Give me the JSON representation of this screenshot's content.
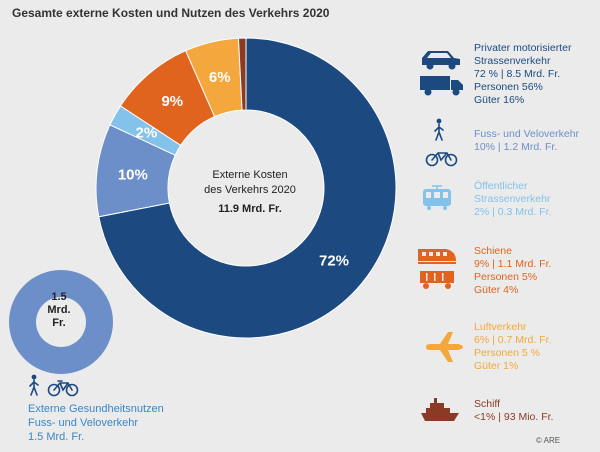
{
  "title": "Gesamte externe Kosten und Nutzen des Verkehrs 2020",
  "center": {
    "line1": "Externe Kosten",
    "line2": "des Verkehrs 2020",
    "total": "11.9 Mrd. Fr."
  },
  "benefit": {
    "circle_label_1": "1.5",
    "circle_label_2": "Mrd.",
    "circle_label_3": "Fr.",
    "lines": [
      "Externe Gesundheitsnutzen",
      "Fuss- und Veloverkehr",
      "1.5 Mrd. Fr."
    ]
  },
  "copyright": "© ARE",
  "colors": {
    "road": "#1c4a80",
    "foot": "#6d8fc9",
    "public": "#83c2ea",
    "rail": "#e0641e",
    "air": "#f4a73c",
    "ship": "#8b3a26",
    "benefit": "#6d8fc9"
  },
  "legend": [
    {
      "key": "road",
      "icon": "car-truck-icon",
      "lines": [
        "Privater motorisierter",
        "Strassenverkehr",
        "72 % | 8.5 Mrd. Fr.",
        "Personen 56%",
        "Güter 16%"
      ]
    },
    {
      "key": "foot",
      "icon": "pedestrian-bicycle-icon",
      "lines": [
        "Fuss- und Veloverkehr",
        "10% | 1.2 Mrd. Fr."
      ]
    },
    {
      "key": "public",
      "icon": "tram-icon",
      "lines": [
        "Öffentlicher",
        "Strassenverkehr",
        "2% | 0.3 Mrd. Fr."
      ]
    },
    {
      "key": "rail",
      "icon": "train-icon",
      "lines": [
        "Schiene",
        "9% | 1.1 Mrd. Fr.",
        "Personen 5%",
        "Güter 4%"
      ]
    },
    {
      "key": "air",
      "icon": "airplane-icon",
      "lines": [
        "Luftverkehr",
        "6% | 0.7 Mrd. Fr.",
        "Personen 5 %",
        "Güter 1%"
      ]
    },
    {
      "key": "ship",
      "icon": "ship-icon",
      "lines": [
        "Schiff",
        "<1% | 93 Mio. Fr."
      ]
    }
  ],
  "chart_data": {
    "type": "pie",
    "title": "Gesamte externe Kosten und Nutzen des Verkehrs 2020",
    "unit": "Mrd. Fr.",
    "total": 11.9,
    "slices": [
      {
        "name": "Privater motorisierter Strassenverkehr",
        "label": "72%",
        "value": 72,
        "color": "#1c4a80"
      },
      {
        "name": "Fuss- und Veloverkehr",
        "label": "10%",
        "value": 10,
        "color": "#6d8fc9"
      },
      {
        "name": "Öffentlicher Strassenverkehr",
        "label": "2%",
        "value": 2.3,
        "color": "#83c2ea"
      },
      {
        "name": "Schiene",
        "label": "9%",
        "value": 9.2,
        "color": "#e0641e"
      },
      {
        "name": "Luftverkehr",
        "label": "6%",
        "value": 5.8,
        "color": "#f4a73c"
      },
      {
        "name": "Schiff",
        "label": "",
        "value": 0.8,
        "color": "#8b3a26"
      }
    ]
  }
}
